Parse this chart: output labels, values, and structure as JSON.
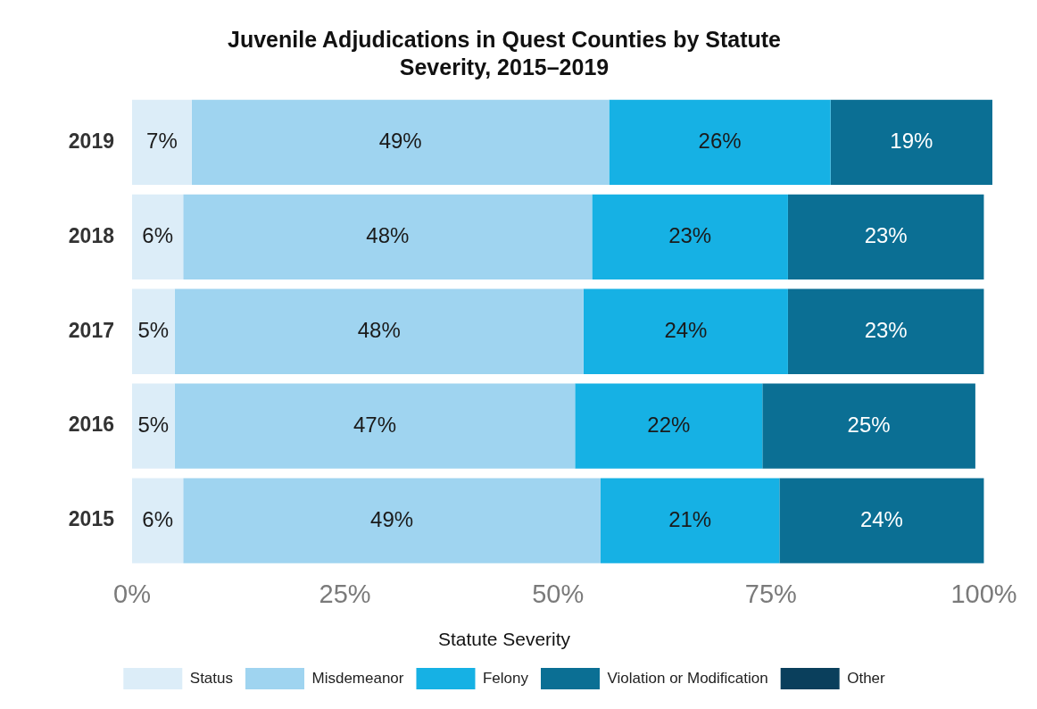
{
  "chart_data": {
    "type": "bar",
    "orientation": "horizontal",
    "stacked": true,
    "title": "Juvenile Adjudications in Quest Counties by Statute Severity, 2015–2019",
    "legend_title": "Statute Severity",
    "categories": [
      "2019",
      "2018",
      "2017",
      "2016",
      "2015"
    ],
    "series": [
      {
        "name": "Status",
        "color": "#dcedf8",
        "values": [
          7,
          6,
          5,
          5,
          6
        ],
        "value_labels": [
          "7%",
          "6%",
          "5%",
          "5%",
          "6%"
        ]
      },
      {
        "name": "Misdemeanor",
        "color": "#9fd4f0",
        "values": [
          49,
          48,
          48,
          47,
          49
        ],
        "value_labels": [
          "49%",
          "48%",
          "48%",
          "47%",
          "49%"
        ]
      },
      {
        "name": "Felony",
        "color": "#16b1e4",
        "values": [
          26,
          23,
          24,
          22,
          21
        ],
        "value_labels": [
          "26%",
          "23%",
          "24%",
          "22%",
          "21%"
        ]
      },
      {
        "name": "Violation or Modification",
        "color": "#0b6f94",
        "values": [
          19,
          23,
          23,
          25,
          24
        ],
        "value_labels": [
          "19%",
          "23%",
          "23%",
          "25%",
          "24%"
        ]
      },
      {
        "name": "Other",
        "color": "#0a3f5c",
        "values": [
          null,
          null,
          null,
          null,
          null
        ]
      }
    ],
    "xlim": [
      0,
      101
    ],
    "xticks": [
      {
        "value": 0,
        "label": "0%"
      },
      {
        "value": 25,
        "label": "25%"
      },
      {
        "value": 50,
        "label": "50%"
      },
      {
        "value": 75,
        "label": "75%"
      },
      {
        "value": 100,
        "label": "100%"
      }
    ],
    "grid": false,
    "legend": "bottom"
  }
}
